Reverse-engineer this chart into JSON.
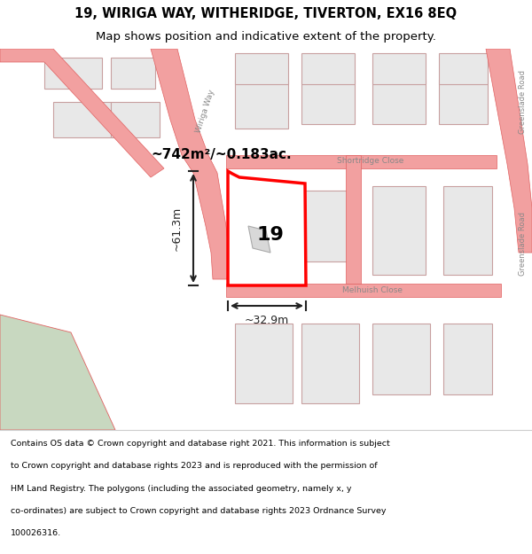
{
  "title": "19, WIRIGA WAY, WITHERIDGE, TIVERTON, EX16 8EQ",
  "subtitle": "Map shows position and indicative extent of the property.",
  "footer_lines": [
    "Contains OS data © Crown copyright and database right 2021. This information is subject",
    "to Crown copyright and database rights 2023 and is reproduced with the permission of",
    "HM Land Registry. The polygons (including the associated geometry, namely x, y",
    "co-ordinates) are subject to Crown copyright and database rights 2023 Ordnance Survey",
    "100026316."
  ],
  "map_bg": "#ffffff",
  "street_color": "#f2a0a0",
  "street_line_color": "#e06060",
  "block_color": "#e8e8e8",
  "block_edge_color": "#c8a0a0",
  "highlight_color": "#ff0000",
  "dim_color": "#222222",
  "label_19": "19",
  "area_label": "~742m²/~0.183ac.",
  "dim_height": "~61.3m",
  "dim_width": "~32.9m",
  "green_area_color": "#c8d8c0",
  "road_label_1": "Wiriga Way",
  "road_label_2": "Shortridge Close",
  "road_label_3": "Greenslade Road",
  "road_label_4": "Melhuish Close",
  "road_label_5": "Greenslade Road"
}
